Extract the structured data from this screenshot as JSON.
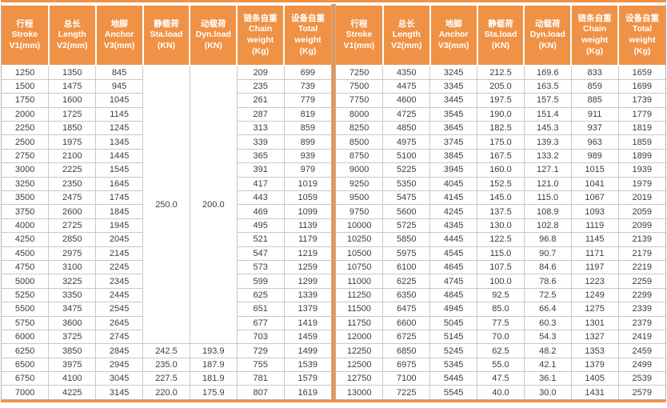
{
  "colors": {
    "accent": "#EF9246",
    "grid": "#c9c9c9",
    "outer_border": "#b3b3b3",
    "cell_text": "#3d3d3d",
    "header_text": "#ffffff"
  },
  "columns": [
    {
      "id": "stroke",
      "lines": [
        "行程",
        "Stroke",
        "V1(mm)"
      ]
    },
    {
      "id": "length",
      "lines": [
        "总长",
        "Length",
        "V2(mm)"
      ]
    },
    {
      "id": "anchor",
      "lines": [
        "地脚",
        "Anchor",
        "V3(mm)"
      ]
    },
    {
      "id": "sta-load",
      "lines": [
        "静载荷",
        "Sta.load",
        "(KN)"
      ]
    },
    {
      "id": "dyn-load",
      "lines": [
        "动载荷",
        "Dyn.load",
        "(KN)"
      ]
    },
    {
      "id": "chain-weight",
      "lines": [
        "链条自重",
        "Chain",
        "weight",
        "(Kg)"
      ]
    },
    {
      "id": "total-weight",
      "lines": [
        "设备自重",
        "Total",
        "weight",
        "(Kg)"
      ]
    }
  ],
  "tables": [
    {
      "name": "left",
      "merged_cells": [
        {
          "col": 3,
          "start_row": 0,
          "row_span": 20,
          "value": "250.0"
        },
        {
          "col": 4,
          "start_row": 0,
          "row_span": 20,
          "value": "200.0"
        }
      ],
      "rows": [
        [
          "1250",
          "1350",
          "845",
          null,
          null,
          "209",
          "699"
        ],
        [
          "1500",
          "1475",
          "945",
          null,
          null,
          "235",
          "739"
        ],
        [
          "1750",
          "1600",
          "1045",
          null,
          null,
          "261",
          "779"
        ],
        [
          "2000",
          "1725",
          "1145",
          null,
          null,
          "287",
          "819"
        ],
        [
          "2250",
          "1850",
          "1245",
          null,
          null,
          "313",
          "859"
        ],
        [
          "2500",
          "1975",
          "1345",
          null,
          null,
          "339",
          "899"
        ],
        [
          "2750",
          "2100",
          "1445",
          null,
          null,
          "365",
          "939"
        ],
        [
          "3000",
          "2225",
          "1545",
          null,
          null,
          "391",
          "979"
        ],
        [
          "3250",
          "2350",
          "1645",
          null,
          null,
          "417",
          "1019"
        ],
        [
          "3500",
          "2475",
          "1745",
          null,
          null,
          "443",
          "1059"
        ],
        [
          "3750",
          "2600",
          "1845",
          null,
          null,
          "469",
          "1099"
        ],
        [
          "4000",
          "2725",
          "1945",
          null,
          null,
          "495",
          "1139"
        ],
        [
          "4250",
          "2850",
          "2045",
          null,
          null,
          "521",
          "1179"
        ],
        [
          "4500",
          "2975",
          "2145",
          null,
          null,
          "547",
          "1219"
        ],
        [
          "4750",
          "3100",
          "2245",
          null,
          null,
          "573",
          "1259"
        ],
        [
          "5000",
          "3225",
          "2345",
          null,
          null,
          "599",
          "1299"
        ],
        [
          "5250",
          "3350",
          "2445",
          null,
          null,
          "625",
          "1339"
        ],
        [
          "5500",
          "3475",
          "2545",
          null,
          null,
          "651",
          "1379"
        ],
        [
          "5750",
          "3600",
          "2645",
          null,
          null,
          "677",
          "1419"
        ],
        [
          "6000",
          "3725",
          "2745",
          null,
          null,
          "703",
          "1459"
        ],
        [
          "6250",
          "3850",
          "2845",
          "242.5",
          "193.9",
          "729",
          "1499"
        ],
        [
          "6500",
          "3975",
          "2945",
          "235.0",
          "187.9",
          "755",
          "1539"
        ],
        [
          "6750",
          "4100",
          "3045",
          "227.5",
          "181.9",
          "781",
          "1579"
        ],
        [
          "7000",
          "4225",
          "3145",
          "220.0",
          "175.9",
          "807",
          "1619"
        ]
      ]
    },
    {
      "name": "right",
      "merged_cells": [],
      "rows": [
        [
          "7250",
          "4350",
          "3245",
          "212.5",
          "169.6",
          "833",
          "1659"
        ],
        [
          "7500",
          "4475",
          "3345",
          "205.0",
          "163.5",
          "859",
          "1699"
        ],
        [
          "7750",
          "4600",
          "3445",
          "197.5",
          "157.5",
          "885",
          "1739"
        ],
        [
          "8000",
          "4725",
          "3545",
          "190.0",
          "151.4",
          "911",
          "1779"
        ],
        [
          "8250",
          "4850",
          "3645",
          "182.5",
          "145.3",
          "937",
          "1819"
        ],
        [
          "8500",
          "4975",
          "3745",
          "175.0",
          "139.3",
          "963",
          "1859"
        ],
        [
          "8750",
          "5100",
          "3845",
          "167.5",
          "133.2",
          "989",
          "1899"
        ],
        [
          "9000",
          "5225",
          "3945",
          "160.0",
          "127.1",
          "1015",
          "1939"
        ],
        [
          "9250",
          "5350",
          "4045",
          "152.5",
          "121.0",
          "1041",
          "1979"
        ],
        [
          "9500",
          "5475",
          "4145",
          "145.0",
          "115.0",
          "1067",
          "2019"
        ],
        [
          "9750",
          "5600",
          "4245",
          "137.5",
          "108.9",
          "1093",
          "2059"
        ],
        [
          "10000",
          "5725",
          "4345",
          "130.0",
          "102.8",
          "1119",
          "2099"
        ],
        [
          "10250",
          "5850",
          "4445",
          "122.5",
          "96.8",
          "1145",
          "2139"
        ],
        [
          "10500",
          "5975",
          "4545",
          "115.0",
          "90.7",
          "1171",
          "2179"
        ],
        [
          "10750",
          "6100",
          "4645",
          "107.5",
          "84.6",
          "1197",
          "2219"
        ],
        [
          "11000",
          "6225",
          "4745",
          "100.0",
          "78.6",
          "1223",
          "2259"
        ],
        [
          "11250",
          "6350",
          "4845",
          "92.5",
          "72.5",
          "1249",
          "2299"
        ],
        [
          "11500",
          "6475",
          "4945",
          "85.0",
          "66.4",
          "1275",
          "2339"
        ],
        [
          "11750",
          "6600",
          "5045",
          "77.5",
          "60.3",
          "1301",
          "2379"
        ],
        [
          "12000",
          "6725",
          "5145",
          "70.0",
          "54.3",
          "1327",
          "2419"
        ],
        [
          "12250",
          "6850",
          "5245",
          "62.5",
          "48.2",
          "1353",
          "2459"
        ],
        [
          "12500",
          "6975",
          "5345",
          "55.0",
          "42.1",
          "1379",
          "2499"
        ],
        [
          "12750",
          "7100",
          "5445",
          "47.5",
          "36.1",
          "1405",
          "2539"
        ],
        [
          "13000",
          "7225",
          "5545",
          "40.0",
          "30.0",
          "1431",
          "2579"
        ]
      ]
    }
  ]
}
